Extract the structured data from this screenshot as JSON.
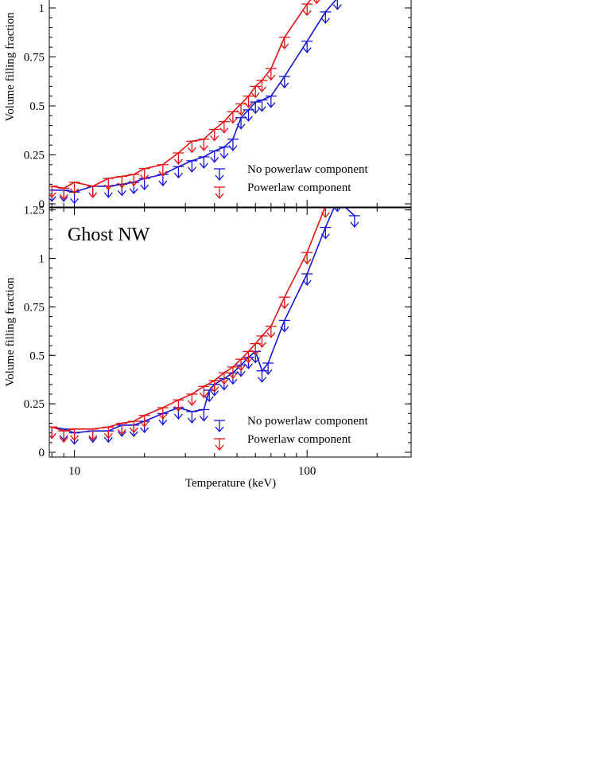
{
  "colors": {
    "no_powerlaw": "#1515d6",
    "powerlaw": "#e01414",
    "axis": "#000000"
  },
  "chart_data": [
    {
      "type": "line",
      "panel": "top",
      "title": "",
      "xlabel": "",
      "ylabel": "Volume filling fraction",
      "xscale": "log",
      "xlim": [
        7.8,
        280
      ],
      "ylim": [
        0,
        1.0
      ],
      "yticks": [
        0,
        0.25,
        0.5,
        0.75,
        1
      ],
      "ytick_labels": [
        "0",
        "0.25",
        "0.5",
        "0.75",
        "1"
      ],
      "xticks": [],
      "xtick_labels": [],
      "legend": {
        "placement": "bottom-right",
        "entries": [
          "No powerlaw component",
          "Powerlaw component"
        ]
      },
      "marker": "upper-limit-arrow",
      "series": [
        {
          "name": "No powerlaw component",
          "x": [
            8,
            9,
            10,
            12,
            14,
            16,
            18,
            20,
            24,
            28,
            32,
            36,
            40,
            44,
            48,
            52,
            56,
            60,
            64,
            70,
            80,
            100,
            120,
            135
          ],
          "values": [
            0.07,
            0.07,
            0.06,
            0.09,
            0.09,
            0.1,
            0.11,
            0.13,
            0.15,
            0.19,
            0.22,
            0.24,
            0.27,
            0.29,
            0.33,
            0.44,
            0.48,
            0.52,
            0.53,
            0.55,
            0.65,
            0.83,
            0.98,
            1.05
          ]
        },
        {
          "name": "Powerlaw component",
          "x": [
            8,
            9,
            10,
            12,
            14,
            16,
            18,
            20,
            24,
            28,
            32,
            36,
            40,
            44,
            48,
            52,
            56,
            60,
            64,
            70,
            80,
            100,
            110
          ],
          "values": [
            0.09,
            0.08,
            0.11,
            0.09,
            0.13,
            0.14,
            0.15,
            0.18,
            0.2,
            0.26,
            0.32,
            0.33,
            0.38,
            0.42,
            0.47,
            0.51,
            0.55,
            0.6,
            0.63,
            0.69,
            0.85,
            1.02,
            1.08
          ]
        }
      ]
    },
    {
      "type": "line",
      "panel": "bottom",
      "title": "Ghost NW",
      "xlabel": "Temperature (keV)",
      "ylabel": "Volume filling fraction",
      "xscale": "log",
      "xlim": [
        7.8,
        280
      ],
      "ylim": [
        0,
        1.25
      ],
      "yticks": [
        0,
        0.25,
        0.5,
        0.75,
        1,
        1.25
      ],
      "ytick_labels": [
        "0",
        "0.25",
        "0.5",
        "0.75",
        "1",
        "1.25"
      ],
      "xticks": [
        10,
        100
      ],
      "xtick_labels": [
        "10",
        "100"
      ],
      "legend": {
        "placement": "bottom-right",
        "entries": [
          "No powerlaw component",
          "Powerlaw component"
        ]
      },
      "marker": "upper-limit-arrow",
      "series": [
        {
          "name": "No powerlaw component",
          "x": [
            8,
            9,
            10,
            12,
            14,
            16,
            18,
            20,
            24,
            28,
            32,
            36,
            38,
            40,
            44,
            48,
            52,
            56,
            60,
            64,
            68,
            80,
            100,
            120,
            135,
            160
          ],
          "values": [
            0.13,
            0.12,
            0.1,
            0.11,
            0.11,
            0.14,
            0.14,
            0.16,
            0.2,
            0.23,
            0.21,
            0.22,
            0.32,
            0.35,
            0.38,
            0.41,
            0.45,
            0.49,
            0.52,
            0.42,
            0.46,
            0.68,
            0.92,
            1.16,
            1.3,
            1.22
          ]
        },
        {
          "name": "Powerlaw component",
          "x": [
            8,
            9,
            10,
            12,
            14,
            16,
            18,
            20,
            24,
            28,
            32,
            36,
            40,
            44,
            48,
            52,
            56,
            60,
            64,
            70,
            80,
            100,
            120
          ],
          "values": [
            0.13,
            0.11,
            0.12,
            0.12,
            0.13,
            0.15,
            0.16,
            0.19,
            0.23,
            0.27,
            0.3,
            0.34,
            0.37,
            0.41,
            0.44,
            0.48,
            0.52,
            0.56,
            0.6,
            0.65,
            0.8,
            1.03,
            1.27
          ]
        }
      ]
    }
  ]
}
